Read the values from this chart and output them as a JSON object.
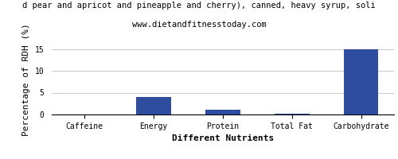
{
  "title": "d pear and apricot and pineapple and cherry), canned, heavy syrup, soli",
  "subtitle": "www.dietandfitnesstoday.com",
  "categories": [
    "Caffeine",
    "Energy",
    "Protein",
    "Total Fat",
    "Carbohydrate"
  ],
  "values": [
    0,
    4.0,
    1.1,
    0.1,
    15.0
  ],
  "bar_color": "#2e4d9e",
  "xlabel": "Different Nutrients",
  "ylabel": "Percentage of RDH (%)",
  "ylim": [
    0,
    16
  ],
  "yticks": [
    0,
    5,
    10,
    15
  ],
  "background_color": "#ffffff",
  "title_fontsize": 7.5,
  "subtitle_fontsize": 7.5,
  "axis_label_fontsize": 8,
  "tick_fontsize": 7,
  "grid_color": "#c8c8c8"
}
